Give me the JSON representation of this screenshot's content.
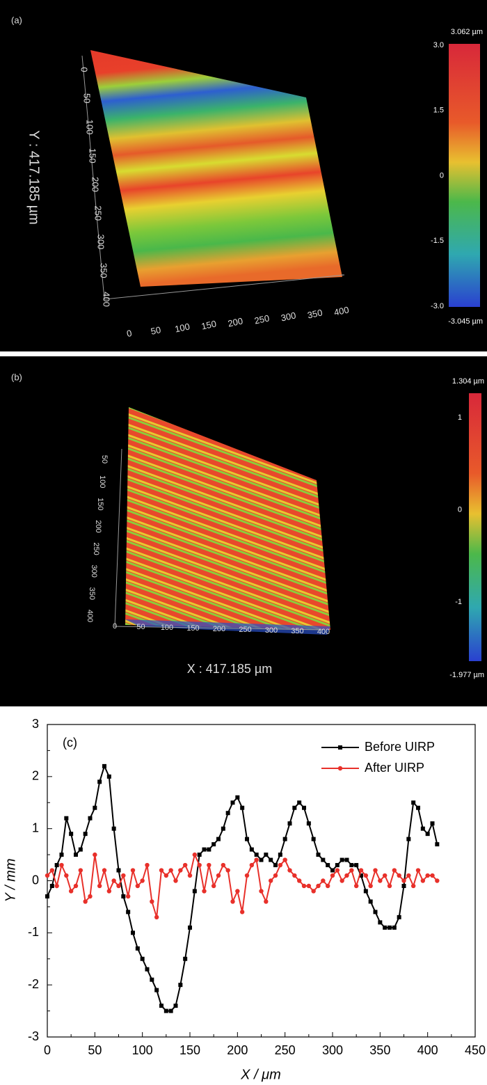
{
  "panels": [
    {
      "label": "(a)",
      "axis_label": "Y : 417.185 µm",
      "y_ticks": [
        "0",
        "50",
        "100",
        "150",
        "200",
        "250",
        "300",
        "350",
        "400"
      ],
      "x_ticks": [
        "0",
        "50",
        "100",
        "150",
        "200",
        "250",
        "300",
        "350",
        "400"
      ],
      "colorbar": {
        "max": "3.062 µm",
        "ticks": [
          "3.0",
          "1.5",
          "0",
          "-1.5",
          "-3.0"
        ],
        "min": "-3.045 µm"
      }
    },
    {
      "label": "(b)",
      "axis_label": "X : 417.185 µm",
      "y_ticks": [
        "50",
        "100",
        "150",
        "200",
        "250",
        "300",
        "350",
        "400"
      ],
      "x_ticks": [
        "0",
        "50",
        "100",
        "150",
        "200",
        "250",
        "300",
        "350",
        "400"
      ],
      "colorbar": {
        "max": "1.304 µm",
        "ticks": [
          "1",
          "0",
          "-1"
        ],
        "min": "-1.977 µm"
      }
    }
  ],
  "chart_data": {
    "type": "line",
    "annotation": "(c)",
    "xlabel": "X / μm",
    "ylabel": "Y / mm",
    "xlim": [
      0,
      450
    ],
    "xticks": [
      0,
      50,
      100,
      150,
      200,
      250,
      300,
      350,
      400,
      450
    ],
    "ylim": [
      -3,
      3
    ],
    "yticks": [
      -3,
      -2,
      -1,
      0,
      1,
      2,
      3
    ],
    "legend": "upper right",
    "x": [
      0,
      5,
      10,
      15,
      20,
      25,
      30,
      35,
      40,
      45,
      50,
      55,
      60,
      65,
      70,
      75,
      80,
      85,
      90,
      95,
      100,
      105,
      110,
      115,
      120,
      125,
      130,
      135,
      140,
      145,
      150,
      155,
      160,
      165,
      170,
      175,
      180,
      185,
      190,
      195,
      200,
      205,
      210,
      215,
      220,
      225,
      230,
      235,
      240,
      245,
      250,
      255,
      260,
      265,
      270,
      275,
      280,
      285,
      290,
      295,
      300,
      305,
      310,
      315,
      320,
      325,
      330,
      335,
      340,
      345,
      350,
      355,
      360,
      365,
      370,
      375,
      380,
      385,
      390,
      395,
      400,
      405,
      410
    ],
    "series": [
      {
        "name": "Before UIRP",
        "color": "#000000",
        "marker": "square",
        "values": [
          -0.3,
          -0.1,
          0.3,
          0.5,
          1.2,
          0.9,
          0.5,
          0.6,
          0.9,
          1.2,
          1.4,
          1.9,
          2.2,
          2.0,
          1.0,
          0.2,
          -0.3,
          -0.6,
          -1.0,
          -1.3,
          -1.5,
          -1.7,
          -1.9,
          -2.1,
          -2.4,
          -2.5,
          -2.5,
          -2.4,
          -2.0,
          -1.5,
          -0.9,
          -0.2,
          0.5,
          0.6,
          0.6,
          0.7,
          0.8,
          1.0,
          1.3,
          1.5,
          1.6,
          1.4,
          0.8,
          0.6,
          0.5,
          0.4,
          0.5,
          0.4,
          0.3,
          0.5,
          0.8,
          1.1,
          1.4,
          1.5,
          1.4,
          1.1,
          0.8,
          0.5,
          0.4,
          0.3,
          0.2,
          0.3,
          0.4,
          0.4,
          0.3,
          0.3,
          0.1,
          -0.2,
          -0.4,
          -0.6,
          -0.8,
          -0.9,
          -0.9,
          -0.9,
          -0.7,
          -0.1,
          0.8,
          1.5,
          1.4,
          1.0,
          0.9,
          1.1,
          0.7
        ]
      },
      {
        "name": "After UIRP",
        "color": "#e8302a",
        "marker": "circle",
        "values": [
          0.1,
          0.2,
          -0.1,
          0.3,
          0.1,
          -0.2,
          -0.1,
          0.2,
          -0.4,
          -0.3,
          0.5,
          -0.1,
          0.2,
          -0.2,
          0.0,
          -0.1,
          0.1,
          -0.3,
          0.2,
          -0.1,
          0.0,
          0.3,
          -0.4,
          -0.7,
          0.2,
          0.1,
          0.2,
          0.0,
          0.2,
          0.3,
          0.1,
          0.5,
          0.3,
          -0.2,
          0.3,
          -0.1,
          0.1,
          0.3,
          0.2,
          -0.4,
          -0.2,
          -0.6,
          0.1,
          0.3,
          0.4,
          -0.2,
          -0.4,
          0.0,
          0.1,
          0.3,
          0.4,
          0.2,
          0.1,
          0.0,
          -0.1,
          -0.1,
          -0.2,
          -0.1,
          0.0,
          -0.1,
          0.1,
          0.2,
          0.0,
          0.1,
          0.2,
          -0.1,
          0.2,
          0.1,
          -0.1,
          0.2,
          0.0,
          0.1,
          -0.1,
          0.2,
          0.1,
          0.0,
          0.1,
          -0.1,
          0.2,
          0.0,
          0.1,
          0.1,
          0.0
        ]
      }
    ]
  }
}
